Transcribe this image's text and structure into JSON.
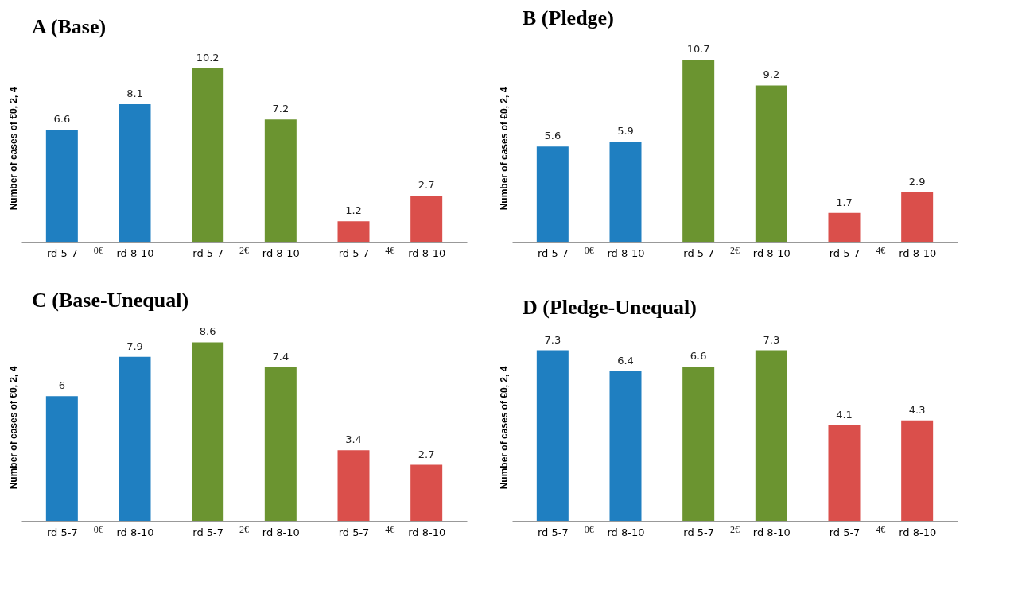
{
  "chart_data": [
    {
      "type": "bar",
      "title": "A (Base)",
      "ylabel": "Number of cases of €0, 2, 4",
      "categories": [
        "rd 5-7",
        "rd 8-10",
        "rd 5-7",
        "rd 8-10",
        "rd 5-7",
        "rd 8-10"
      ],
      "values": [
        6.6,
        8.1,
        10.2,
        7.2,
        1.2,
        2.7
      ],
      "colors": [
        "#1f7fc1",
        "#1f7fc1",
        "#6b9430",
        "#6b9430",
        "#da4f4b",
        "#da4f4b"
      ],
      "data_labels": true,
      "tick_labels": "x",
      "annotations": [
        "0€",
        "2€",
        "4€"
      ]
    },
    {
      "type": "bar",
      "title": "B (Pledge)",
      "ylabel": "Number of cases of €0, 2, 4",
      "categories": [
        "rd 5-7",
        "rd 8-10",
        "rd 5-7",
        "rd 8-10",
        "rd 5-7",
        "rd 8-10"
      ],
      "values": [
        5.6,
        5.9,
        10.7,
        9.2,
        1.7,
        2.9
      ],
      "colors": [
        "#1f7fc1",
        "#1f7fc1",
        "#6b9430",
        "#6b9430",
        "#da4f4b",
        "#da4f4b"
      ],
      "data_labels": true,
      "tick_labels": "x",
      "annotations": [
        "0€",
        "2€",
        "4€"
      ]
    },
    {
      "type": "bar",
      "title": "C (Base-Unequal)",
      "ylabel": "Number of cases of €0, 2, 4",
      "categories": [
        "rd 5-7",
        "rd 8-10",
        "rd 5-7",
        "rd 8-10",
        "rd 5-7",
        "rd 8-10"
      ],
      "values": [
        6,
        7.9,
        8.6,
        7.4,
        3.4,
        2.7
      ],
      "colors": [
        "#1f7fc1",
        "#1f7fc1",
        "#6b9430",
        "#6b9430",
        "#da4f4b",
        "#da4f4b"
      ],
      "data_labels": true,
      "tick_labels": "x",
      "annotations": [
        "0€",
        "2€",
        "4€"
      ]
    },
    {
      "type": "bar",
      "title": "D (Pledge-Unequal)",
      "ylabel": "Number of cases of €0, 2, 4",
      "categories": [
        "rd 5-7",
        "rd 8-10",
        "rd 5-7",
        "rd 8-10",
        "rd 5-7",
        "rd 8-10"
      ],
      "values": [
        7.3,
        6.4,
        6.6,
        7.3,
        4.1,
        4.3
      ],
      "colors": [
        "#1f7fc1",
        "#1f7fc1",
        "#6b9430",
        "#6b9430",
        "#da4f4b",
        "#da4f4b"
      ],
      "data_labels": true,
      "tick_labels": "x",
      "annotations": [
        "0€",
        "2€",
        "4€"
      ]
    }
  ]
}
